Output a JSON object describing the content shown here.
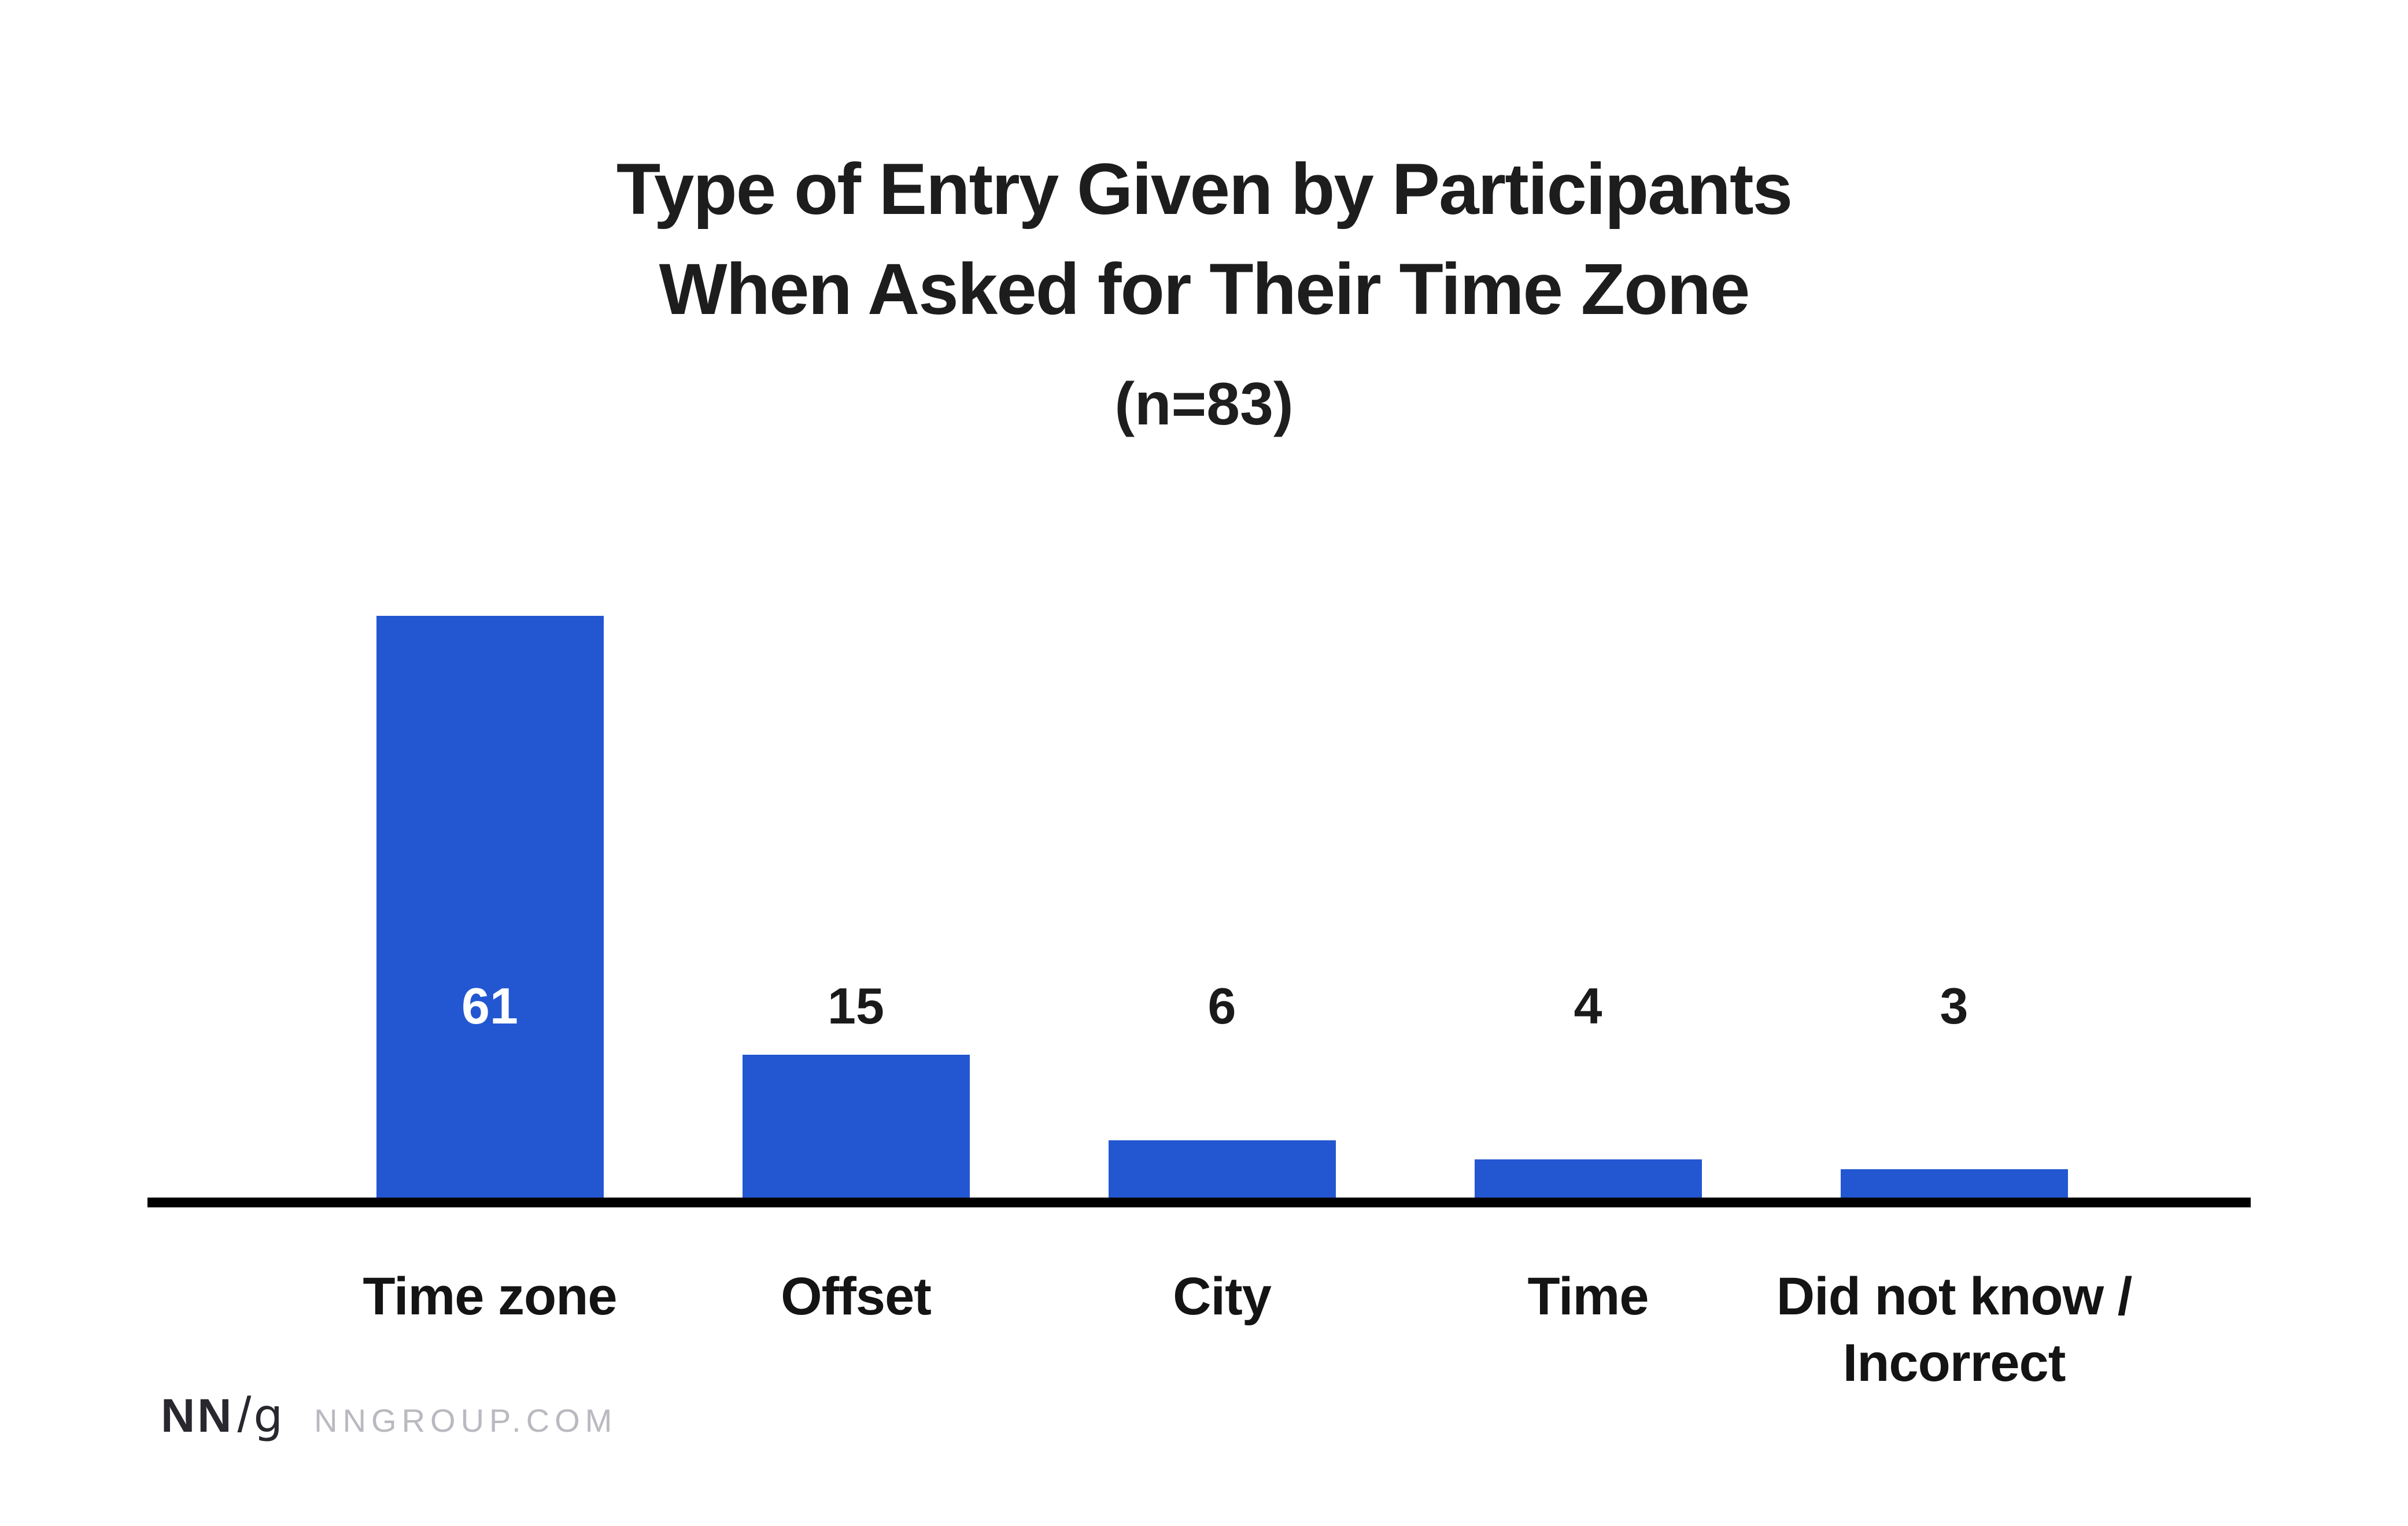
{
  "chart_data": {
    "type": "bar",
    "title": "Type of Entry Given by Participants\nWhen Asked for Their Time Zone",
    "subtitle": "(n=83)",
    "categories": [
      "Time zone",
      "Offset",
      "City",
      "Time",
      "Did not know / Incorrect"
    ],
    "values": [
      61,
      15,
      6,
      4,
      3
    ],
    "value_labels": [
      "61",
      "15",
      "6",
      "4",
      "3"
    ],
    "value_label_colors": [
      "#ffffff",
      "#1a1a1a",
      "#1a1a1a",
      "#1a1a1a",
      "#1a1a1a"
    ],
    "bar_color": "#2357d2",
    "axis_color": "#000000",
    "text_color": "#1d1d1d",
    "ylim": [
      0,
      61
    ],
    "grid": false,
    "legend": null,
    "xlabel": "",
    "ylabel": ""
  },
  "footer": {
    "logo_nn": "NN",
    "logo_slash": "/",
    "logo_g": "g",
    "site": "NNGROUP.COM"
  }
}
